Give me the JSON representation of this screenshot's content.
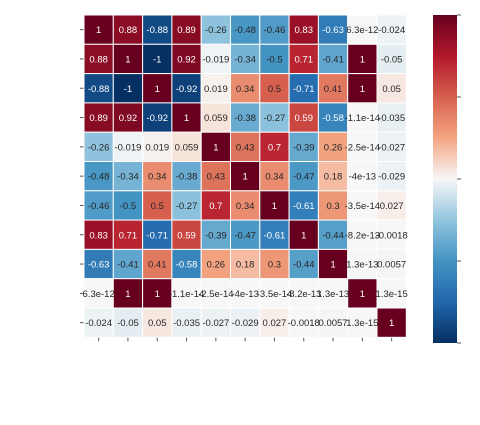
{
  "chart_data": {
    "type": "heatmap",
    "title": "",
    "rows": 11,
    "cols": 11,
    "cell_text": [
      [
        "1",
        "0.88",
        "-0.88",
        "0.89",
        "-0.26",
        "-0.48",
        "-0.46",
        "0.83",
        "-0.63",
        "6.3e-12",
        "-0.024"
      ],
      [
        "0.88",
        "1",
        "-1",
        "0.92",
        "-0.019",
        "-0.34",
        "-0.5",
        "0.71",
        "-0.41",
        "1",
        "-0.05"
      ],
      [
        "-0.88",
        "-1",
        "1",
        "-0.92",
        "0.019",
        "0.34",
        "0.5",
        "-0.71",
        "0.41",
        "1",
        "0.05"
      ],
      [
        "0.89",
        "0.92",
        "-0.92",
        "1",
        "0.059",
        "-0.38",
        "-0.27",
        "0.59",
        "-0.58",
        "-1.1e-14",
        "-0.035"
      ],
      [
        "-0.26",
        "-0.019",
        "0.019",
        "0.059",
        "1",
        "0.43",
        "0.7",
        "-0.39",
        "0.26",
        "-2.5e-14",
        "-0.027"
      ],
      [
        "-0.48",
        "-0.34",
        "0.34",
        "-0.38",
        "0.43",
        "1",
        "0.34",
        "-0.47",
        "0.18",
        "-4e-13",
        "-0.029"
      ],
      [
        "-0.46",
        "-0.5",
        "0.5",
        "-0.27",
        "0.7",
        "0.34",
        "1",
        "-0.61",
        "0.3",
        "-3.5e-14",
        "0.027"
      ],
      [
        "0.83",
        "0.71",
        "-0.71",
        "0.59",
        "-0.39",
        "-0.47",
        "-0.61",
        "1",
        "-0.44",
        "-8.2e-13",
        "-0.0018"
      ],
      [
        "-0.63",
        "-0.41",
        "0.41",
        "-0.58",
        "0.26",
        "0.18",
        "0.3",
        "-0.44",
        "1",
        "1.3e-13",
        "0.0057"
      ],
      [
        "6.3e-12",
        "1",
        "1",
        "-1.1e-14",
        "-2.5e-14",
        "-4e-13",
        "-3.5e-14",
        "-8.2e-13",
        "1.3e-13",
        "1",
        "1.3e-15"
      ],
      [
        "-0.024",
        "-0.05",
        "0.05",
        "-0.035",
        "-0.027",
        "-0.029",
        "0.027",
        "-0.0018",
        "0.0057",
        "1.3e-15",
        "1"
      ]
    ],
    "colormap": {
      "negative": "#053061",
      "zero": "#f7f7f7",
      "positive": "#67001f"
    },
    "vmin": -1,
    "vmax": 1,
    "grid_lines": true,
    "colorbar": "right"
  }
}
